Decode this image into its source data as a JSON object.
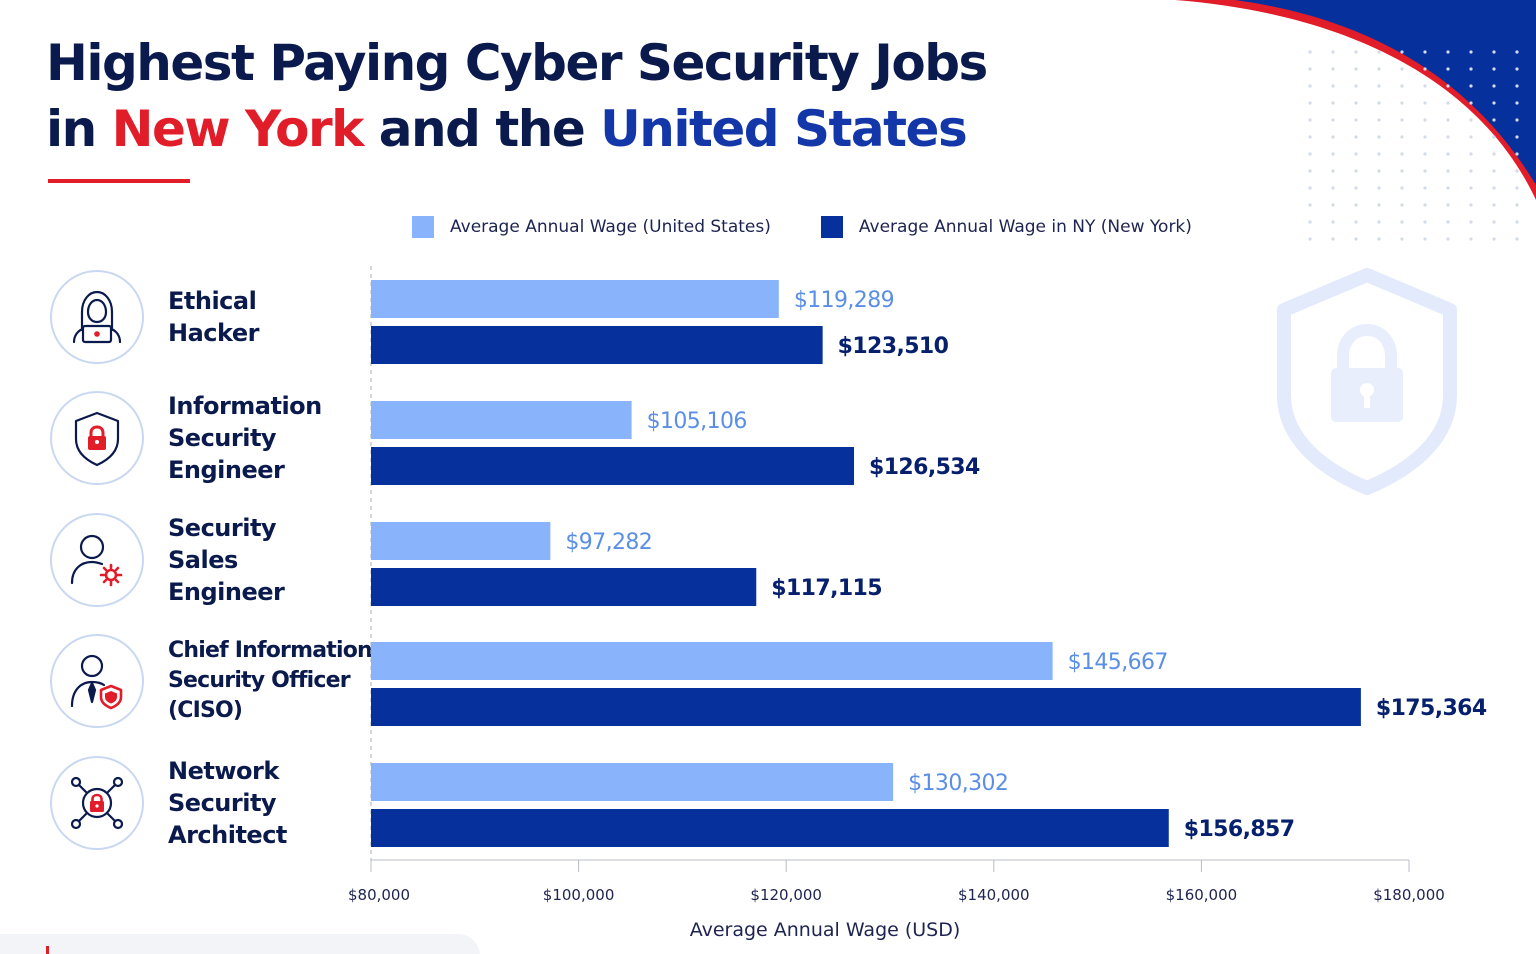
{
  "title": {
    "line1": "Highest Paying Cyber Security Jobs",
    "line2_prefix": "in ",
    "line2_red": "New York",
    "line2_middle": " and the ",
    "line2_blue": "United States"
  },
  "colors": {
    "navy_text": "#0b1a4d",
    "accent_red": "#e11d2a",
    "accent_blue": "#1337a8",
    "us_bar": "#89b4fb",
    "ny_bar": "#06309b",
    "us_label": "#5b8fe6",
    "ny_label": "#06206e"
  },
  "jobs": [
    {
      "label_lines": [
        "Ethical",
        "Hacker"
      ],
      "icon": "hacker-laptop-icon"
    },
    {
      "label_lines": [
        "Information",
        "Security",
        "Engineer"
      ],
      "icon": "shield-lock-icon"
    },
    {
      "label_lines": [
        "Security",
        "Sales",
        "Engineer"
      ],
      "icon": "user-gear-icon"
    },
    {
      "label_lines": [
        "Chief Information",
        "Security Officer",
        "(CISO)"
      ],
      "icon": "officer-shield-icon"
    },
    {
      "label_lines": [
        "Network",
        "Security",
        "Architect"
      ],
      "icon": "network-lock-icon"
    }
  ],
  "chart_data": {
    "type": "bar",
    "orientation": "horizontal",
    "categories": [
      "Ethical Hacker",
      "Information Security Engineer",
      "Security Sales Engineer",
      "Chief Information Security Officer (CISO)",
      "Network Security Architect"
    ],
    "series": [
      {
        "name": "Average Annual Wage (United States)",
        "values": [
          119289,
          105106,
          97282,
          145667,
          130302
        ],
        "labels": [
          "$119,289",
          "$105,106",
          "$97,282",
          "$145,667",
          "$130,302"
        ],
        "color": "#89b4fb"
      },
      {
        "name": "Average Annual Wage in NY (New York)",
        "values": [
          123510,
          126534,
          117115,
          175364,
          156857
        ],
        "labels": [
          "$123,510",
          "$126,534",
          "$117,115",
          "$175,364",
          "$156,857"
        ],
        "color": "#06309b"
      }
    ],
    "xlabel": "Average Annual Wage (USD)",
    "xlim": [
      80000,
      180000
    ],
    "xticks": [
      80000,
      100000,
      120000,
      140000,
      160000,
      180000
    ],
    "xtick_labels": [
      "$80,000",
      "$100,000",
      "$120,000",
      "$140,000",
      "$160,000",
      "$180,000"
    ],
    "legend_position": "top",
    "grid": false
  }
}
